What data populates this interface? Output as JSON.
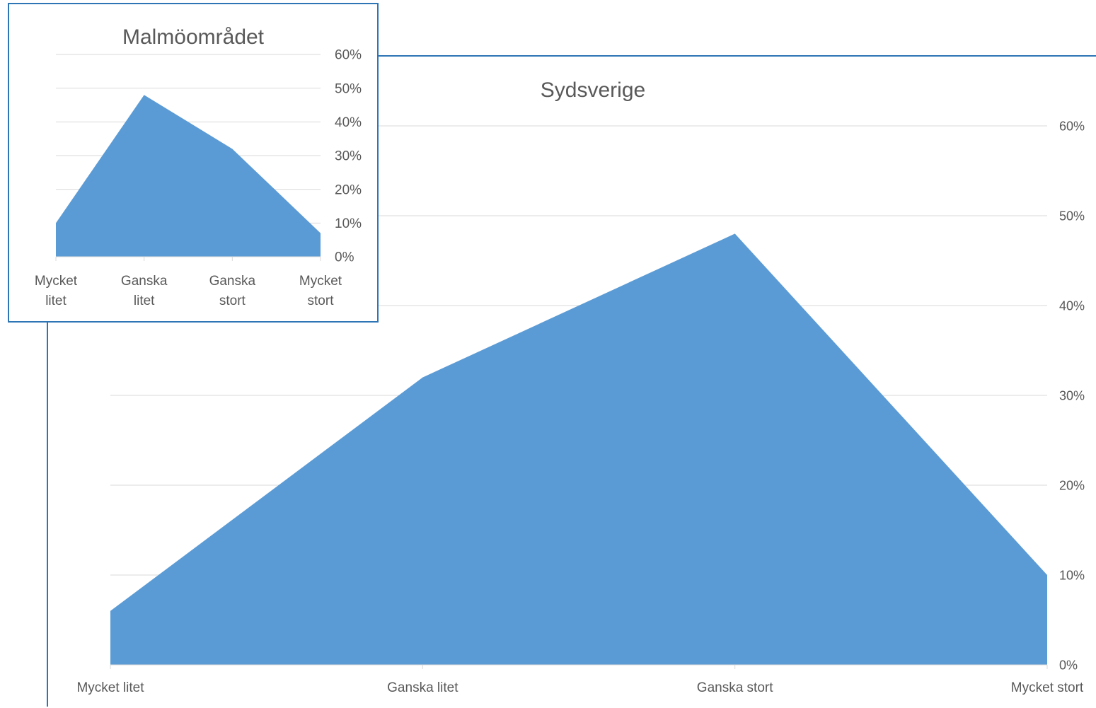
{
  "chart_data": [
    {
      "id": "main",
      "type": "area",
      "title": "Sydsverige",
      "categories": [
        "Mycket litet",
        "Ganska litet",
        "Ganska stort",
        "Mycket stort"
      ],
      "series": [
        {
          "values": [
            6,
            32,
            48,
            10
          ]
        }
      ],
      "y_ticks": [
        "0%",
        "10%",
        "20%",
        "30%",
        "40%",
        "50%",
        "60%"
      ],
      "ylim": [
        0,
        60
      ],
      "y_axis_position": "right",
      "grid": true,
      "fill_color": "#5b9bd5"
    },
    {
      "id": "inset",
      "type": "area",
      "title": "Malmöområdet",
      "categories": [
        [
          "Mycket",
          "litet"
        ],
        [
          "Ganska",
          "litet"
        ],
        [
          "Ganska",
          "stort"
        ],
        [
          "Mycket",
          "stort"
        ]
      ],
      "series": [
        {
          "values": [
            10,
            48,
            32,
            7
          ]
        }
      ],
      "y_ticks": [
        "0%",
        "10%",
        "20%",
        "30%",
        "40%",
        "50%",
        "60%"
      ],
      "ylim": [
        0,
        60
      ],
      "y_axis_position": "right",
      "grid": true,
      "fill_color": "#5b9bd5"
    }
  ]
}
